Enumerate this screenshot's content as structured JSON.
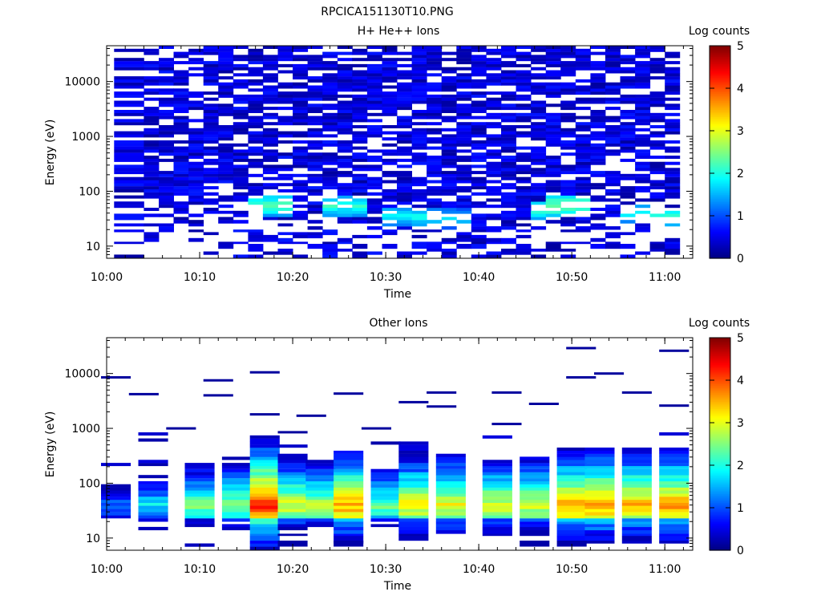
{
  "file_title": "RPCICA151130T10.PNG",
  "chart_data": [
    {
      "type": "heatmap",
      "title": "H+ He++ Ions",
      "xlabel": "Time",
      "ylabel": "Energy (eV)",
      "y_scale": "log",
      "ylim": [
        6,
        45000
      ],
      "xlim_minutes": [
        0,
        63
      ],
      "x_ticks": [
        {
          "m": 0,
          "label": "10:00"
        },
        {
          "m": 10,
          "label": "10:10"
        },
        {
          "m": 20,
          "label": "10:20"
        },
        {
          "m": 30,
          "label": "10:30"
        },
        {
          "m": 40,
          "label": "10:40"
        },
        {
          "m": 50,
          "label": "10:50"
        },
        {
          "m": 60,
          "label": "11:00"
        }
      ],
      "y_ticks": [
        {
          "v": 10,
          "label": "10"
        },
        {
          "v": 100,
          "label": "100"
        },
        {
          "v": 1000,
          "label": "1000"
        },
        {
          "v": 10000,
          "label": "10000"
        }
      ],
      "colorbar": {
        "label": "Log counts",
        "min": 0,
        "max": 5,
        "ticks": [
          "0",
          "1",
          "2",
          "3",
          "4",
          "5"
        ]
      },
      "time_bins_minutes": [
        0.8,
        4.0,
        5.6,
        7.2,
        8.8,
        10.4,
        12.0,
        13.6,
        15.2,
        16.8,
        18.4,
        20.0,
        21.6,
        23.2,
        24.8,
        26.4,
        28.0,
        29.6,
        31.2,
        32.8,
        34.4,
        36.0,
        37.6,
        39.2,
        40.8,
        42.4,
        44.0,
        45.6,
        47.2,
        48.8,
        50.4,
        52.0,
        53.6,
        55.2,
        56.8,
        58.4,
        60.0,
        61.6
      ],
      "energy_bins_eV": [
        6,
        7,
        8,
        9,
        11,
        12,
        14,
        16,
        18,
        20,
        23,
        26,
        30,
        34,
        39,
        44,
        50,
        57,
        65,
        74,
        84,
        96,
        109,
        124,
        141,
        160,
        182,
        207,
        235,
        267,
        304,
        345,
        392,
        446,
        507,
        576,
        655,
        744,
        846,
        962,
        1093,
        1243,
        1413,
        1606,
        1825,
        2075,
        2359,
        2681,
        3048,
        3465,
        3938,
        4477,
        5089,
        5785,
        6576,
        7475,
        8497,
        9659,
        10980,
        12482,
        14189,
        16130,
        18336,
        20843,
        23693,
        26933,
        30616,
        34803,
        39562,
        45000
      ],
      "hotspots": [
        {
          "t": 17,
          "e": 55,
          "level": 2.2
        },
        {
          "t": 25,
          "e": 55,
          "level": 2.0
        },
        {
          "t": 32,
          "e": 35,
          "level": 1.8
        },
        {
          "t": 37,
          "e": 32,
          "level": 1.6
        },
        {
          "t": 47,
          "e": 45,
          "level": 2.0
        },
        {
          "t": 50,
          "e": 55,
          "level": 2.4
        },
        {
          "t": 57,
          "e": 40,
          "level": 1.8
        },
        {
          "t": 61,
          "e": 35,
          "level": 2.0
        }
      ]
    },
    {
      "type": "heatmap",
      "title": "Other Ions",
      "xlabel": "Time",
      "ylabel": "Energy (eV)",
      "y_scale": "log",
      "ylim": [
        6,
        45000
      ],
      "xlim_minutes": [
        0,
        63
      ],
      "x_ticks": [
        {
          "m": 0,
          "label": "10:00"
        },
        {
          "m": 10,
          "label": "10:10"
        },
        {
          "m": 20,
          "label": "10:20"
        },
        {
          "m": 30,
          "label": "10:30"
        },
        {
          "m": 40,
          "label": "10:40"
        },
        {
          "m": 50,
          "label": "10:50"
        },
        {
          "m": 60,
          "label": "11:00"
        }
      ],
      "y_ticks": [
        {
          "v": 10,
          "label": "10"
        },
        {
          "v": 100,
          "label": "100"
        },
        {
          "v": 1000,
          "label": "1000"
        },
        {
          "v": 10000,
          "label": "10000"
        }
      ],
      "colorbar": {
        "label": "Log counts",
        "min": 0,
        "max": 5,
        "ticks": [
          "0",
          "1",
          "2",
          "3",
          "4",
          "5"
        ]
      },
      "peak_energy_eV": 40,
      "peak_profile": [
        {
          "t": 1,
          "level": 1.2
        },
        {
          "t": 5,
          "level": 1.8
        },
        {
          "t": 10,
          "level": 2.5
        },
        {
          "t": 14,
          "level": 2.7
        },
        {
          "t": 17,
          "level": 4.2
        },
        {
          "t": 20,
          "level": 3.0
        },
        {
          "t": 23,
          "level": 2.8
        },
        {
          "t": 26,
          "level": 3.6
        },
        {
          "t": 30,
          "level": 2.4
        },
        {
          "t": 33,
          "level": 3.2
        },
        {
          "t": 37,
          "level": 3.2
        },
        {
          "t": 42,
          "level": 3.0
        },
        {
          "t": 46,
          "level": 3.0
        },
        {
          "t": 50,
          "level": 3.6
        },
        {
          "t": 53,
          "level": 3.6
        },
        {
          "t": 57,
          "level": 3.5
        },
        {
          "t": 61,
          "level": 3.6
        }
      ],
      "sparse_lines": [
        {
          "t": 1,
          "e": 8500
        },
        {
          "t": 4,
          "e": 4200
        },
        {
          "t": 8,
          "e": 1000
        },
        {
          "t": 12,
          "e": 7500
        },
        {
          "t": 12,
          "e": 4000
        },
        {
          "t": 17,
          "e": 10500
        },
        {
          "t": 17,
          "e": 1800
        },
        {
          "t": 20,
          "e": 850
        },
        {
          "t": 22,
          "e": 1700
        },
        {
          "t": 26,
          "e": 4300
        },
        {
          "t": 29,
          "e": 1000
        },
        {
          "t": 33,
          "e": 3000
        },
        {
          "t": 36,
          "e": 4500
        },
        {
          "t": 36,
          "e": 2500
        },
        {
          "t": 43,
          "e": 4500
        },
        {
          "t": 43,
          "e": 1200
        },
        {
          "t": 47,
          "e": 2800
        },
        {
          "t": 51,
          "e": 29000
        },
        {
          "t": 51,
          "e": 8500
        },
        {
          "t": 54,
          "e": 10000
        },
        {
          "t": 57,
          "e": 4500
        },
        {
          "t": 61,
          "e": 26000
        },
        {
          "t": 61,
          "e": 2600
        }
      ]
    }
  ]
}
